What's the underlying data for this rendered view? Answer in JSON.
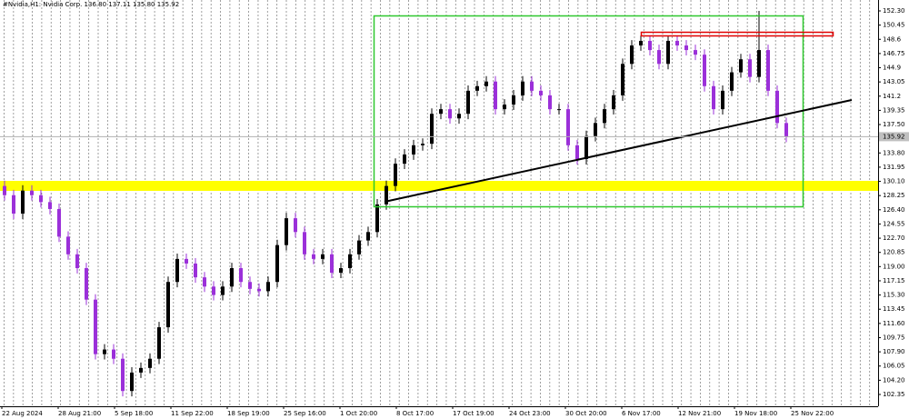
{
  "chart_data": {
    "type": "candlestick",
    "title": "#Nvidia,H1:  Nvidia Corp.  136.80 137.11 135.80 135.92",
    "x_labels": [
      "22 Aug 2024",
      "28 Aug 21:00",
      "5 Sep 18:00",
      "11 Sep 22:00",
      "18 Sep 19:00",
      "25 Sep 16:00",
      "1 Oct 20:00",
      "8 Oct 17:00",
      "17 Oct 19:00",
      "24 Oct 23:00",
      "30 Oct 20:00",
      "6 Nov 17:00",
      "12 Nov 21:00",
      "19 Nov 18:00",
      "25 Nov 22:00"
    ],
    "open": [
      129.5,
      128.3,
      125.9,
      128.9,
      128.3,
      127.4,
      126.5,
      122.9,
      120.6,
      118.8,
      114.7,
      107.6,
      108.2,
      107,
      102.8,
      105.2,
      105.8,
      107,
      111.1,
      117,
      120,
      119.4,
      117.6,
      116.4,
      115.3,
      116.4,
      118.8,
      117,
      116.1,
      115.8,
      117,
      121.8,
      125.3,
      123.5,
      120.6,
      120,
      120.6,
      118.2,
      118.8,
      120.6,
      122.4,
      123.5,
      127.1,
      129.5,
      132.4,
      133.6,
      134.8,
      135,
      138.9,
      139.5,
      138.3,
      138.9,
      141.9,
      142.5,
      143.1,
      139.5,
      140.1,
      141.3,
      143.1,
      141.9,
      141.3,
      139.5,
      139.5,
      134.8,
      133,
      136,
      137.7,
      139.5,
      141.3,
      145.4,
      147.8,
      148.4,
      147.2,
      145.4,
      148.4,
      147.8,
      147.2,
      146.6,
      142.5,
      139.5,
      141.9,
      144.3,
      146,
      143.7,
      147.2,
      141.9,
      137.7
    ],
    "high": [
      130.2,
      129.0,
      129.6,
      129.6,
      129.0,
      128.1,
      127.2,
      123.6,
      121.3,
      119.5,
      115.4,
      108.9,
      108.9,
      107.7,
      105.9,
      106.5,
      107.7,
      111.8,
      117.7,
      120.7,
      120.7,
      120.1,
      118.3,
      117.1,
      117.1,
      119.5,
      119.5,
      117.7,
      116.8,
      117.7,
      122.5,
      126.0,
      126.0,
      124.2,
      121.3,
      121.3,
      121.3,
      119.5,
      121.3,
      123.1,
      124.2,
      127.8,
      130.2,
      133.1,
      134.3,
      135.5,
      135.7,
      139.6,
      140.2,
      140.2,
      139.6,
      142.6,
      143.2,
      143.8,
      143.8,
      140.8,
      142.0,
      143.8,
      143.8,
      142.6,
      142.0,
      140.2,
      140.2,
      135.5,
      136.7,
      138.4,
      140.2,
      142.0,
      146.1,
      148.5,
      149.1,
      149.1,
      147.9,
      149.1,
      149.1,
      148.5,
      147.9,
      147.3,
      143.2,
      142.6,
      145.0,
      146.7,
      146.7,
      152.3,
      147.9,
      142.6,
      138.4
    ],
    "low": [
      127.6,
      125.2,
      125.2,
      127.6,
      126.7,
      125.8,
      122.2,
      119.9,
      118.1,
      114.0,
      106.9,
      106.9,
      106.3,
      102.1,
      102.1,
      104.5,
      105.1,
      106.3,
      110.4,
      116.3,
      118.7,
      116.9,
      115.7,
      114.6,
      114.6,
      115.7,
      116.3,
      115.4,
      115.1,
      115.1,
      116.3,
      121.1,
      122.8,
      119.9,
      119.3,
      119.3,
      117.5,
      117.5,
      118.1,
      119.9,
      121.7,
      122.8,
      126.4,
      128.8,
      131.7,
      132.9,
      134.1,
      134.3,
      138.2,
      137.6,
      137.6,
      138.2,
      141.2,
      141.8,
      138.8,
      138.8,
      139.4,
      140.6,
      141.2,
      140.6,
      138.8,
      138.8,
      134.1,
      132.3,
      132.3,
      135.3,
      137.0,
      138.8,
      140.6,
      144.7,
      147.1,
      146.5,
      144.7,
      144.7,
      147.1,
      146.5,
      145.9,
      141.8,
      138.8,
      138.8,
      141.2,
      143.6,
      143.0,
      143.0,
      141.2,
      137.0,
      135.2
    ],
    "close": [
      128.3,
      125.9,
      128.9,
      128.3,
      127.4,
      126.5,
      122.9,
      120.6,
      118.8,
      114.7,
      107.6,
      108.2,
      107,
      102.8,
      105.2,
      105.8,
      107,
      111.1,
      117,
      120,
      119.4,
      117.6,
      116.4,
      115.3,
      116.4,
      118.8,
      117,
      116.1,
      115.8,
      117,
      121.8,
      125.3,
      123.5,
      120.6,
      120,
      120.6,
      118.2,
      118.8,
      120.6,
      122.4,
      123.5,
      127.1,
      129.5,
      132.4,
      133.6,
      134.8,
      135,
      138.9,
      139.5,
      138.3,
      138.9,
      141.9,
      142.5,
      143.1,
      139.5,
      140.1,
      141.3,
      143.1,
      141.9,
      141.3,
      139.5,
      139.5,
      134.8,
      133,
      136,
      137.7,
      139.5,
      141.3,
      145.4,
      147.8,
      148.4,
      147.2,
      145.4,
      148.4,
      147.8,
      147.2,
      146.6,
      142.5,
      139.5,
      141.9,
      144.3,
      146,
      143.7,
      147.2,
      141.9,
      137.7,
      135.92
    ],
    "up_color": "#000000",
    "down_color": "#9b30d9",
    "last_price": 135.92,
    "ylim": [
      100.81,
      153.72
    ],
    "yticks": [
      {
        "value": 152.3,
        "label": "152.30"
      },
      150.45,
      148.6,
      146.75,
      144.9,
      143.05,
      141.2,
      139.35,
      {
        "value": 137.5,
        "label": "137.50"
      },
      {
        "value": 133.8,
        "label": "133.80"
      },
      131.95,
      {
        "value": 130.1,
        "label": "130.10"
      },
      128.25,
      {
        "value": 126.4,
        "label": "126.40"
      },
      124.55,
      {
        "value": 122.7,
        "label": "122.70"
      },
      120.85,
      {
        "value": 119,
        "label": "119.00"
      },
      117.15,
      {
        "value": 115.3,
        "label": "115.30"
      },
      113.45,
      {
        "value": 111.6,
        "label": "111.60"
      },
      109.75,
      {
        "value": 107.9,
        "label": "107.90"
      },
      106.05,
      {
        "value": 104.2,
        "label": "104.20"
      },
      102.35
    ]
  }
}
